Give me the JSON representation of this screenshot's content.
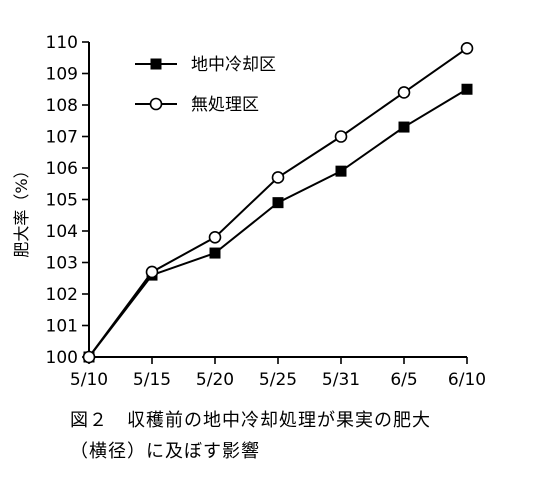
{
  "chart_data": {
    "type": "line",
    "ylabel": "肥大率（%）",
    "categories": [
      "5/10",
      "5/15",
      "5/20",
      "5/25",
      "5/31",
      "6/5",
      "6/10"
    ],
    "ylim": [
      100,
      110
    ],
    "yticks": [
      100,
      101,
      102,
      103,
      104,
      105,
      106,
      107,
      108,
      109,
      110
    ],
    "grid": false,
    "legend_position": "top-left",
    "series": [
      {
        "name": "地中冷却区",
        "marker": "filled-square",
        "color": "#000000",
        "values": [
          100.0,
          102.6,
          103.3,
          104.9,
          105.9,
          107.3,
          108.5
        ]
      },
      {
        "name": "無処理区",
        "marker": "open-circle",
        "color": "#000000",
        "values": [
          100.0,
          102.7,
          103.8,
          105.7,
          107.0,
          108.4,
          109.8
        ]
      }
    ]
  },
  "caption": {
    "line1": "図２　収穫前の地中冷却処理が果実の肥大",
    "line2": "（横径）に及ぼす影響"
  }
}
